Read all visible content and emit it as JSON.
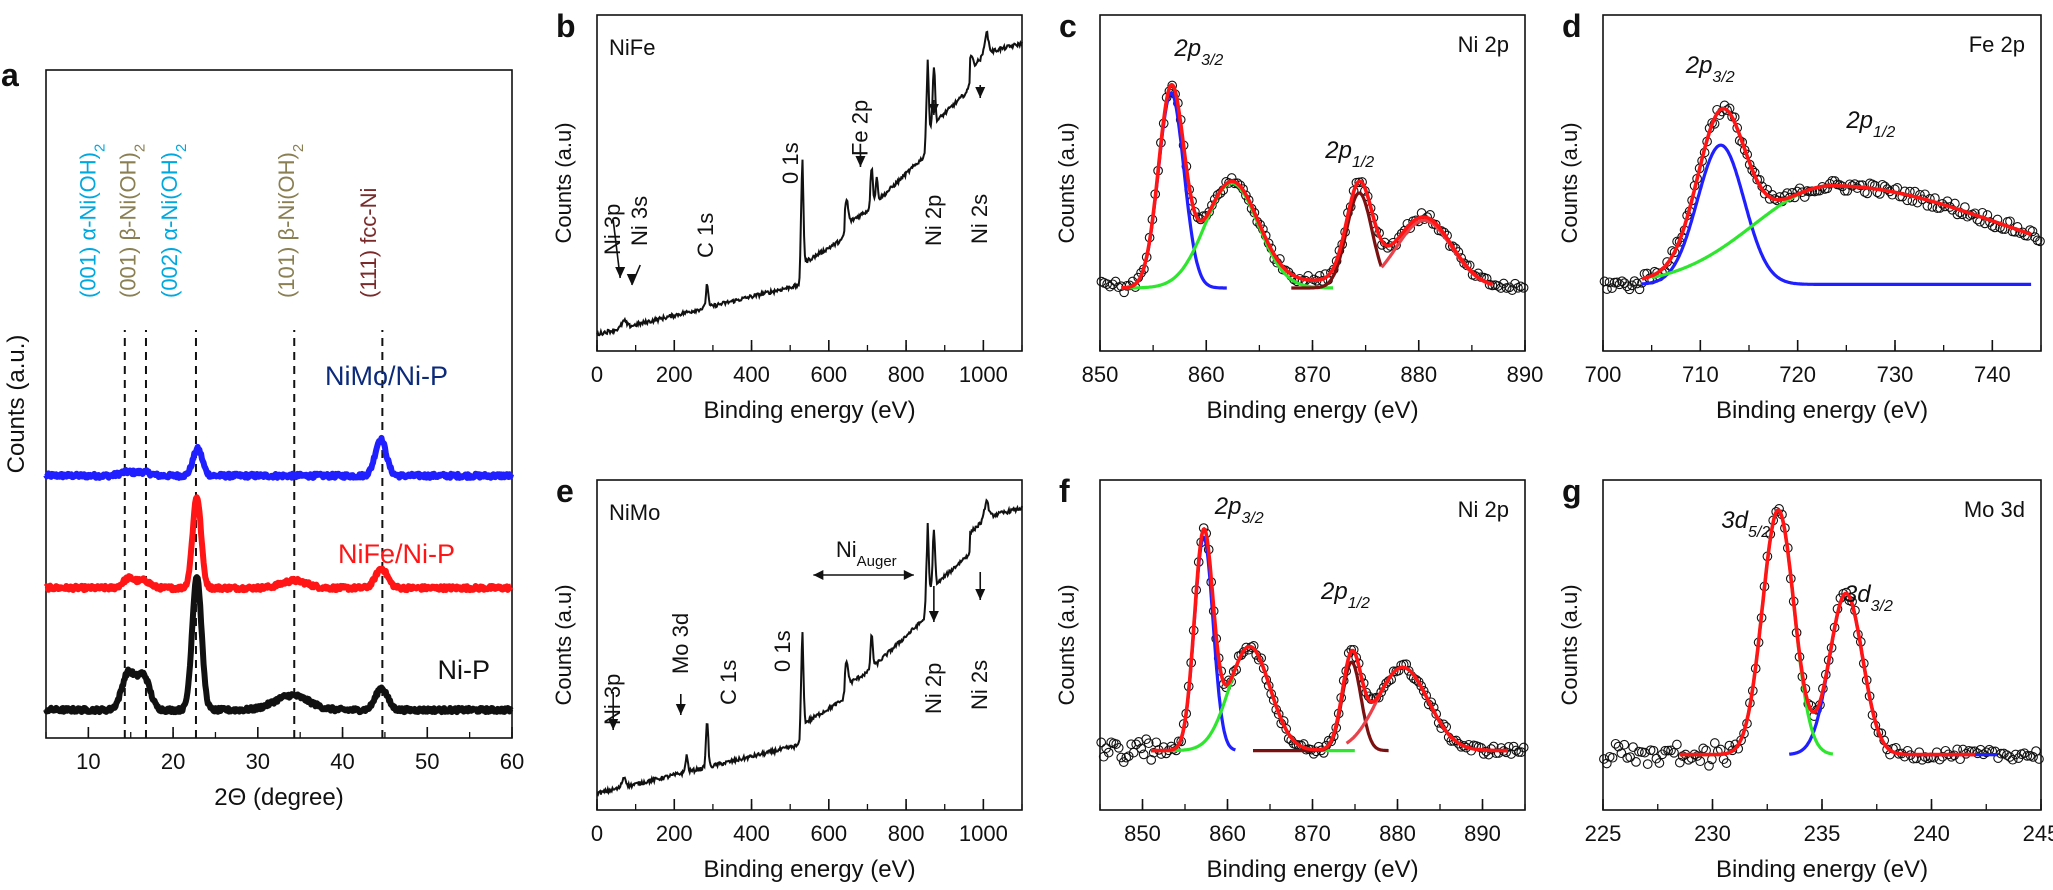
{
  "figure": {
    "colors": {
      "black": "#111111",
      "blue": "#1f1fff",
      "red": "#ff1515",
      "green": "#2ee62e",
      "darkred": "#7a1010",
      "pink": "#e8424a",
      "navy": "#0b2a7a",
      "cyan": "#00a8e0",
      "olive": "#8a7f52",
      "maroon": "#7a2a2a"
    }
  },
  "chart_data": [
    {
      "id": "a",
      "panel_label": "a",
      "type": "line",
      "xlabel": "2Θ (degree)",
      "ylabel": "Counts (a.u.)",
      "xlim": [
        5,
        60
      ],
      "xticks": [
        10,
        20,
        30,
        40,
        50,
        60
      ],
      "series": [
        {
          "name": "NiMo/Ni-P",
          "color": "blue",
          "offset": 1.92,
          "peaks": [
            [
              22.9,
              0.22,
              0.55
            ],
            [
              44.5,
              0.3,
              0.65
            ],
            [
              14.5,
              0.03,
              0.8
            ],
            [
              16.5,
              0.03,
              0.8
            ]
          ]
        },
        {
          "name": "NiFe/Ni-P",
          "color": "red",
          "offset": 1.0,
          "peaks": [
            [
              14.8,
              0.08,
              0.7
            ],
            [
              16.6,
              0.06,
              0.7
            ],
            [
              22.8,
              0.75,
              0.5
            ],
            [
              34.3,
              0.06,
              1.5
            ],
            [
              44.6,
              0.16,
              0.7
            ]
          ]
        },
        {
          "name": "Ni-P",
          "color": "black",
          "offset": 0.0,
          "peaks": [
            [
              14.7,
              0.3,
              0.75
            ],
            [
              16.5,
              0.28,
              0.75
            ],
            [
              22.8,
              1.1,
              0.55
            ],
            [
              34.0,
              0.12,
              2.0
            ],
            [
              44.6,
              0.18,
              0.7
            ]
          ]
        }
      ],
      "series_labels": [
        {
          "text": "NiMo/Ni-P",
          "color": "navy"
        },
        {
          "text": "NiFe/Ni-P",
          "color": "red"
        },
        {
          "text": "Ni-P",
          "color": "black"
        }
      ],
      "reference_lines": [
        14.3,
        16.8,
        22.7,
        34.3,
        44.7
      ],
      "peak_annotations": [
        {
          "x": 9.9,
          "text": "(001) α-Ni(OH)",
          "sub": "2",
          "color": "cyan"
        },
        {
          "x": 14.6,
          "text": "(001) β-Ni(OH)",
          "sub": "2",
          "color": "olive"
        },
        {
          "x": 19.5,
          "text": "(002) α-Ni(OH)",
          "sub": "2",
          "color": "cyan"
        },
        {
          "x": 33.3,
          "text": "(101) β-Ni(OH)",
          "sub": "2",
          "color": "olive"
        },
        {
          "x": 43.0,
          "text": "(111) fcc-Ni",
          "sub": "",
          "color": "maroon"
        }
      ]
    },
    {
      "id": "b",
      "panel_label": "b",
      "type": "line",
      "title": "NiFe",
      "xlabel": "Binding energy (eV)",
      "ylabel": "Counts (a.u)",
      "xlim": [
        0,
        1100
      ],
      "xticks": [
        0,
        200,
        400,
        600,
        800,
        1000
      ],
      "annotations": [
        {
          "text": "Ni 3p",
          "x": 60
        },
        {
          "text": "Ni 3s",
          "x": 130
        },
        {
          "text": "C 1s",
          "x": 300
        },
        {
          "text": "0 1s",
          "x": 520
        },
        {
          "text": "Fe 2p",
          "x": 700
        },
        {
          "text": "Ni 2p",
          "x": 890
        },
        {
          "text": "Ni 2s",
          "x": 1010
        }
      ]
    },
    {
      "id": "c",
      "panel_label": "c",
      "type": "line",
      "title": "Ni 2p",
      "xlabel": "Binding energy (eV)",
      "ylabel": "Counts (a.u)",
      "xlim": [
        850,
        890
      ],
      "xticks": [
        850,
        860,
        870,
        880,
        890
      ],
      "baseline": 0.04,
      "fit_range": [
        852,
        887
      ],
      "components": [
        {
          "color": "blue",
          "center": 856.7,
          "amp": 0.78,
          "width": 1.2,
          "lo": 852,
          "hi": 862
        },
        {
          "color": "green",
          "center": 862.4,
          "amp": 0.42,
          "width": 2.5,
          "lo": 852,
          "hi": 872
        },
        {
          "color": "darkred",
          "center": 874.4,
          "amp": 0.38,
          "width": 1.2,
          "lo": 868,
          "hi": 876.5
        },
        {
          "color": "pink",
          "center": 880.5,
          "amp": 0.27,
          "width": 2.6,
          "lo": 876.5,
          "hi": 887
        }
      ],
      "labels": [
        {
          "main": "2p",
          "sub": "3/2",
          "x": 857.0
        },
        {
          "main": "2p",
          "sub": "1/2",
          "x": 871.2
        }
      ]
    },
    {
      "id": "d",
      "panel_label": "d",
      "type": "line",
      "title": "Fe 2p",
      "xlabel": "Binding energy (eV)",
      "ylabel": "Counts (a.u)",
      "xlim": [
        700,
        745
      ],
      "xticks": [
        700,
        710,
        720,
        730,
        740
      ],
      "baseline": 0.04,
      "fit_range": [
        704,
        744
      ],
      "components": [
        {
          "color": "blue",
          "center": 712.1,
          "amp": 0.48,
          "width": 2.4,
          "lo": 704,
          "hi": 744
        },
        {
          "color": "green",
          "center": 723.5,
          "amp": 0.34,
          "width": 8.0,
          "lo": 705,
          "hi": 744,
          "asym": 2.2
        }
      ],
      "labels": [
        {
          "main": "2p",
          "sub": "3/2",
          "x": 708.5
        },
        {
          "main": "2p",
          "sub": "1/2",
          "x": 725.0
        }
      ]
    },
    {
      "id": "e",
      "panel_label": "e",
      "type": "line",
      "title": "NiMo",
      "xlabel": "Binding energy (eV)",
      "ylabel": "Counts (a.u)",
      "xlim": [
        0,
        1100
      ],
      "xticks": [
        0,
        200,
        400,
        600,
        800,
        1000
      ],
      "annotations": [
        {
          "text": "Ni 3p",
          "x": 60
        },
        {
          "text": "Mo 3d",
          "x": 235
        },
        {
          "text": "C 1s",
          "x": 360
        },
        {
          "text": "0 1s",
          "x": 500
        },
        {
          "text": "Ni",
          "sub": "Auger",
          "x": 640
        },
        {
          "text": "Ni 2p",
          "x": 890
        },
        {
          "text": "Ni 2s",
          "x": 1010
        }
      ]
    },
    {
      "id": "f",
      "panel_label": "f",
      "type": "line",
      "title": "Ni 2p",
      "xlabel": "Binding energy (eV)",
      "ylabel": "Counts (a.u)",
      "xlim": [
        845,
        895
      ],
      "xticks": [
        850,
        860,
        870,
        880,
        890
      ],
      "baseline": 0.04,
      "fit_range": [
        851,
        893
      ],
      "components": [
        {
          "color": "blue",
          "center": 857.2,
          "amp": 0.82,
          "width": 1.1,
          "lo": 851,
          "hi": 861
        },
        {
          "color": "green",
          "center": 862.6,
          "amp": 0.4,
          "width": 2.4,
          "lo": 851,
          "hi": 875
        },
        {
          "color": "darkred",
          "center": 874.6,
          "amp": 0.34,
          "width": 1.1,
          "lo": 863,
          "hi": 879
        },
        {
          "color": "pink",
          "center": 880.6,
          "amp": 0.32,
          "width": 3.0,
          "lo": 874,
          "hi": 893
        }
      ],
      "labels": [
        {
          "main": "2p",
          "sub": "3/2",
          "x": 858.5
        },
        {
          "main": "2p",
          "sub": "1/2",
          "x": 871.0
        }
      ]
    },
    {
      "id": "g",
      "panel_label": "g",
      "type": "line",
      "title": "Mo 3d",
      "xlabel": "Binding energy (eV)",
      "ylabel": "Counts (a.u)",
      "xlim": [
        225,
        245
      ],
      "xticks": [
        225,
        230,
        235,
        240,
        245
      ],
      "baseline": 0.04,
      "fit_range": [
        228.5,
        242
      ],
      "components": [
        {
          "color": "blue",
          "center": 236.1,
          "amp": 0.62,
          "width": 0.75,
          "lo": 233.5,
          "hi": 243
        },
        {
          "color": "green",
          "center": 233.0,
          "amp": 0.94,
          "width": 0.72,
          "lo": 228.5,
          "hi": 235.5
        }
      ],
      "labels": [
        {
          "main": "3d",
          "sub": "5/2",
          "x": 230.4
        },
        {
          "main": "3d",
          "sub": "3/2",
          "x": 236.0
        }
      ]
    }
  ]
}
